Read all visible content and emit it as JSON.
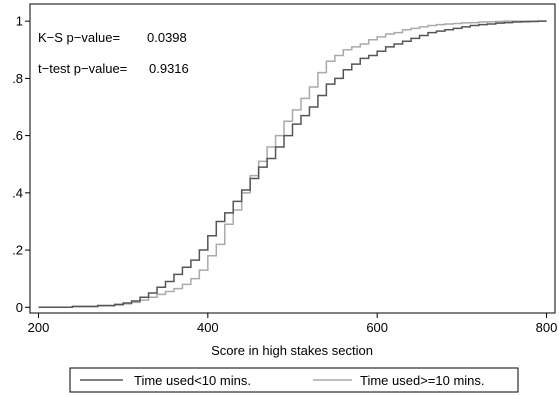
{
  "chart_data": {
    "type": "line",
    "step": true,
    "xlabel": "Score in high stakes section",
    "ylabel": "",
    "xlim": [
      190,
      810
    ],
    "ylim": [
      -0.02,
      1.06
    ],
    "xticks": [
      200,
      400,
      600,
      800
    ],
    "xtick_labels": [
      "200",
      "400",
      "600",
      "800"
    ],
    "yticks": [
      0,
      0.2,
      0.4,
      0.6,
      0.8,
      1
    ],
    "ytick_labels": [
      "0",
      ".2",
      ".4",
      ".6",
      ".8",
      "1"
    ],
    "grid": false,
    "legend_position": "bottom",
    "annotations": [
      {
        "label": "K−S p−value=",
        "value": "0.0398"
      },
      {
        "label": "t−test p−value=",
        "value": "0.9316"
      }
    ],
    "series": [
      {
        "name": "Time used<10 mins.",
        "color": "#555555",
        "x": [
          200,
          240,
          270,
          290,
          300,
          310,
          320,
          330,
          340,
          350,
          360,
          370,
          380,
          390,
          400,
          410,
          420,
          430,
          440,
          450,
          460,
          470,
          480,
          490,
          500,
          510,
          520,
          530,
          540,
          550,
          560,
          570,
          580,
          590,
          600,
          610,
          620,
          630,
          640,
          650,
          660,
          670,
          680,
          690,
          700,
          710,
          720,
          730,
          740,
          750,
          760,
          770,
          780,
          790,
          800
        ],
        "y": [
          0.0,
          0.003,
          0.006,
          0.01,
          0.015,
          0.022,
          0.035,
          0.05,
          0.07,
          0.09,
          0.115,
          0.14,
          0.165,
          0.2,
          0.25,
          0.3,
          0.33,
          0.37,
          0.41,
          0.45,
          0.49,
          0.52,
          0.56,
          0.6,
          0.64,
          0.67,
          0.7,
          0.74,
          0.78,
          0.8,
          0.83,
          0.85,
          0.87,
          0.88,
          0.895,
          0.91,
          0.92,
          0.93,
          0.94,
          0.95,
          0.96,
          0.965,
          0.97,
          0.975,
          0.98,
          0.985,
          0.988,
          0.99,
          0.993,
          0.995,
          0.997,
          0.998,
          0.999,
          1.0,
          1.0
        ]
      },
      {
        "name": "Time used>=10 mins.",
        "color": "#aaaaaa",
        "x": [
          200,
          240,
          270,
          290,
          300,
          310,
          320,
          330,
          340,
          350,
          360,
          370,
          380,
          390,
          400,
          410,
          420,
          430,
          440,
          450,
          460,
          470,
          480,
          490,
          500,
          510,
          520,
          530,
          540,
          550,
          560,
          570,
          580,
          590,
          600,
          610,
          620,
          630,
          640,
          650,
          660,
          670,
          680,
          690,
          700,
          710,
          720,
          730,
          740,
          750,
          760,
          770,
          780,
          790,
          800
        ],
        "y": [
          0.0,
          0.002,
          0.005,
          0.008,
          0.012,
          0.017,
          0.025,
          0.035,
          0.045,
          0.055,
          0.065,
          0.08,
          0.1,
          0.13,
          0.18,
          0.22,
          0.29,
          0.34,
          0.4,
          0.46,
          0.51,
          0.56,
          0.6,
          0.65,
          0.69,
          0.73,
          0.77,
          0.82,
          0.86,
          0.88,
          0.9,
          0.91,
          0.92,
          0.935,
          0.945,
          0.955,
          0.96,
          0.97,
          0.975,
          0.98,
          0.985,
          0.988,
          0.99,
          0.992,
          0.994,
          0.995,
          0.997,
          0.998,
          0.999,
          1.0,
          1.0,
          1.0,
          1.0,
          1.0,
          1.0
        ]
      }
    ]
  }
}
